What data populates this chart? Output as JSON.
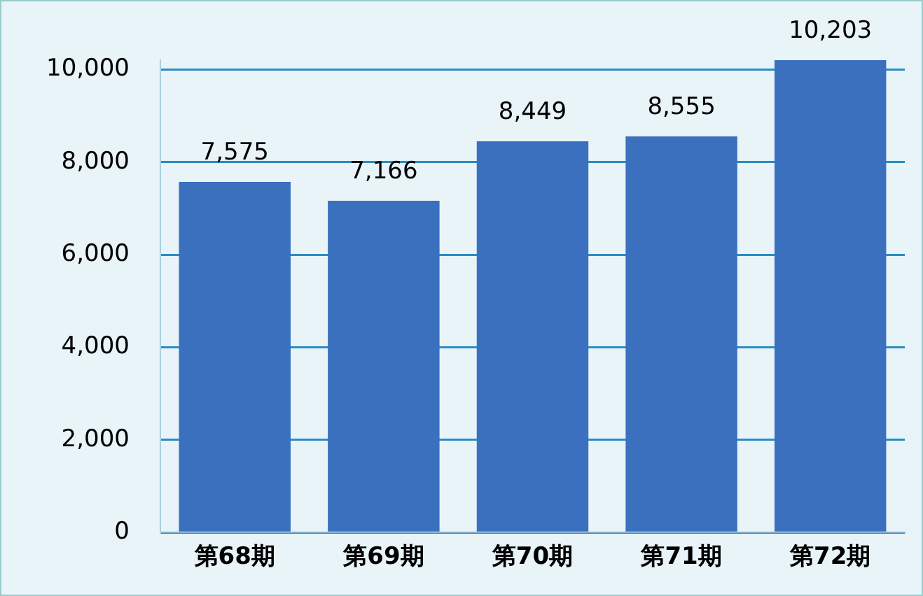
{
  "chart_data": {
    "type": "bar",
    "categories": [
      "第68期",
      "第69期",
      "第70期",
      "第71期",
      "第72期"
    ],
    "values": [
      7575,
      7166,
      8449,
      8555,
      10203
    ],
    "color": "#3a70be",
    "value_labels": [
      "7,575",
      "7,166",
      "8,449",
      "8,555",
      "10,203"
    ],
    "ylim": [
      0,
      10203
    ],
    "yticks": [
      {
        "value": 0,
        "label": "0"
      },
      {
        "value": 2000,
        "label": "2,000"
      },
      {
        "value": 4000,
        "label": "4,000"
      },
      {
        "value": 6000,
        "label": "6,000"
      },
      {
        "value": 8000,
        "label": "8,000"
      },
      {
        "value": 10000,
        "label": "10,000"
      }
    ],
    "grid": "y"
  }
}
